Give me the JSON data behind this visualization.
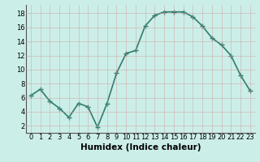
{
  "x": [
    0,
    1,
    2,
    3,
    4,
    5,
    6,
    7,
    8,
    9,
    10,
    11,
    12,
    13,
    14,
    15,
    16,
    17,
    18,
    19,
    20,
    21,
    22,
    23
  ],
  "y": [
    6.3,
    7.2,
    5.5,
    4.5,
    3.2,
    5.2,
    4.7,
    1.8,
    5.2,
    9.5,
    12.3,
    12.7,
    16.2,
    17.7,
    18.2,
    18.2,
    18.2,
    17.5,
    16.2,
    14.5,
    13.5,
    12.0,
    9.2,
    7.0
  ],
  "line_color": "#2e7d6e",
  "marker": "+",
  "marker_size": 4,
  "bg_color": "#cceee8",
  "grid_color": "#b8d8d4",
  "xlabel": "Humidex (Indice chaleur)",
  "ylabel_ticks": [
    2,
    4,
    6,
    8,
    10,
    12,
    14,
    16,
    18
  ],
  "xlim": [
    -0.5,
    23.5
  ],
  "ylim": [
    1,
    19.2
  ],
  "xtick_labels": [
    "0",
    "1",
    "2",
    "3",
    "4",
    "5",
    "6",
    "7",
    "8",
    "9",
    "10",
    "11",
    "12",
    "13",
    "14",
    "15",
    "16",
    "17",
    "18",
    "19",
    "20",
    "21",
    "22",
    "23"
  ],
  "tick_fontsize": 6,
  "xlabel_fontsize": 7.5,
  "line_width": 1.2
}
